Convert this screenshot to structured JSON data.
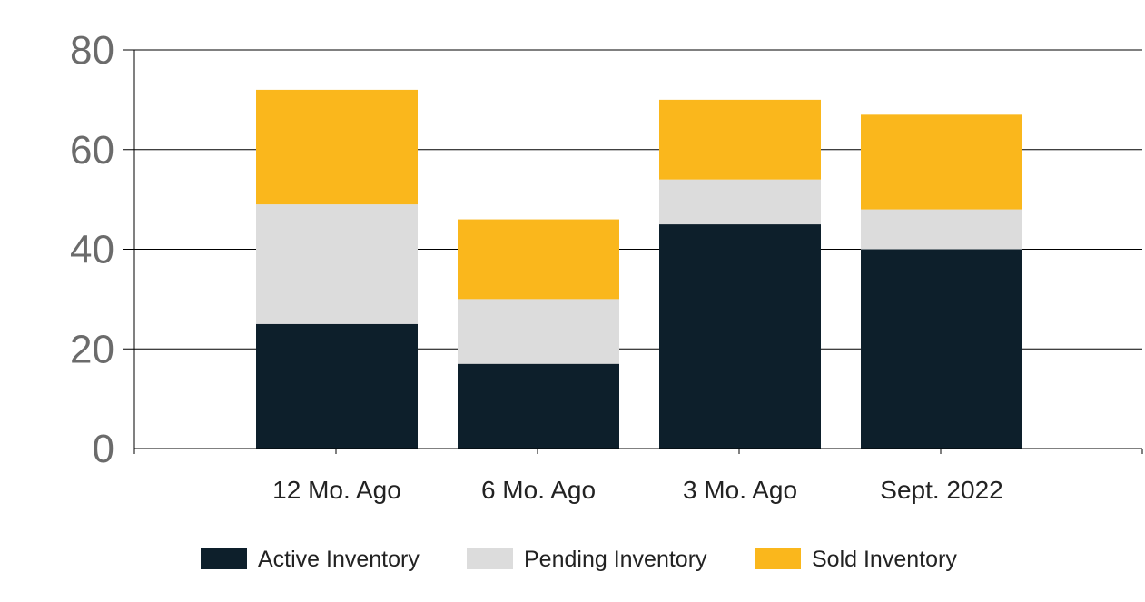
{
  "chart_data": {
    "type": "bar",
    "stacked": true,
    "categories": [
      "12 Mo. Ago",
      "6 Mo. Ago",
      "3 Mo. Ago",
      "Sept. 2022"
    ],
    "series": [
      {
        "name": "Active Inventory",
        "color": "#0d1f2b",
        "values": [
          25,
          17,
          45,
          40
        ]
      },
      {
        "name": "Pending Inventory",
        "color": "#dcdcdc",
        "values": [
          24,
          13,
          9,
          8
        ]
      },
      {
        "name": "Sold Inventory",
        "color": "#fab71c",
        "values": [
          23,
          16,
          16,
          19
        ]
      }
    ],
    "ylim": [
      0,
      80
    ],
    "yticks": [
      0,
      20,
      40,
      60,
      80
    ],
    "grid": true,
    "legend_position": "bottom"
  }
}
